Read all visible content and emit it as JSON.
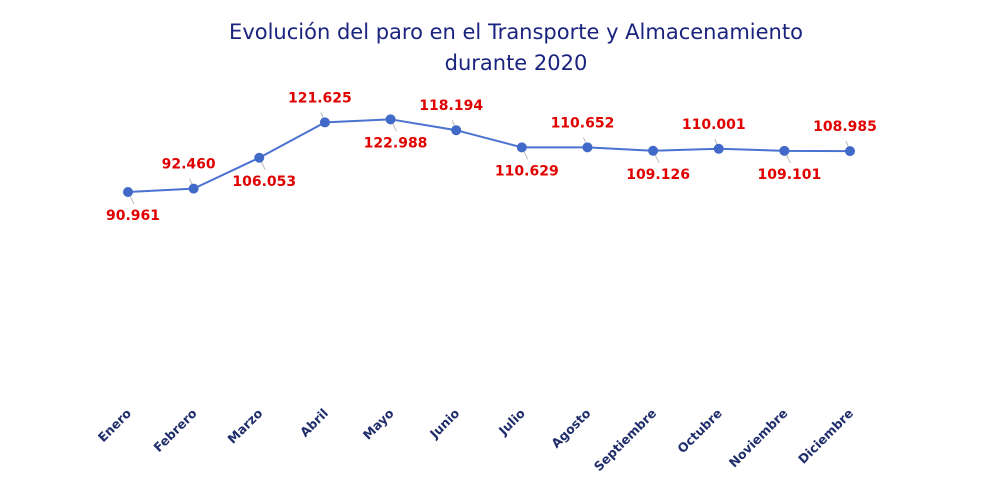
{
  "chart_data": {
    "type": "line",
    "title": "Evolución del paro en el Transporte y Almacenamiento",
    "subtitle": "durante 2020",
    "categories": [
      "Enero",
      "Febrero",
      "Marzo",
      "Abril",
      "Mayo",
      "Junio",
      "Julio",
      "Agosto",
      "Septiembre",
      "Octubre",
      "Noviembre",
      "Diciembre"
    ],
    "values": [
      90961,
      92460,
      106053,
      121625,
      122988,
      118194,
      110629,
      110652,
      109126,
      110001,
      109101,
      108985
    ],
    "data_labels": [
      "90.961",
      "92.460",
      "106.053",
      "121.625",
      "122.988",
      "118.194",
      "110.629",
      "110.652",
      "109.126",
      "110.001",
      "109.101",
      "108.985"
    ],
    "xlabel": "",
    "ylabel": "",
    "ylim": [
      50000,
      131500
    ],
    "grid": false,
    "legend": "none",
    "colors": {
      "line": "#4a72d0",
      "marker": "#4169c8",
      "data_label": "#e00000",
      "title": "#1a237e",
      "tick_label": "#1f2d6b"
    }
  }
}
